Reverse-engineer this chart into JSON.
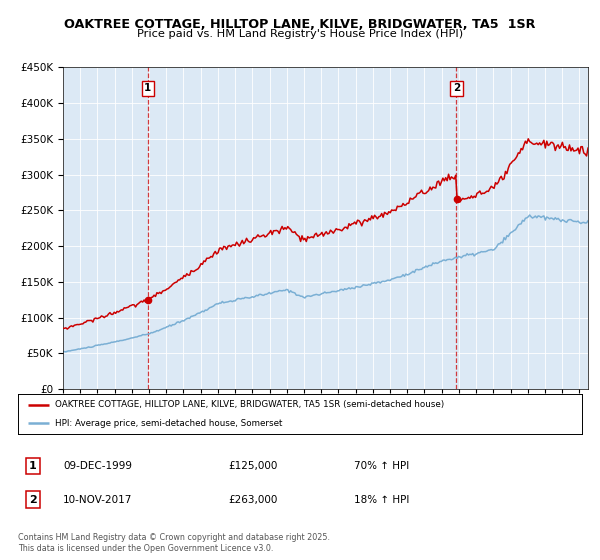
{
  "title": "OAKTREE COTTAGE, HILLTOP LANE, KILVE, BRIDGWATER, TA5  1SR",
  "subtitle": "Price paid vs. HM Land Registry's House Price Index (HPI)",
  "bg_color": "#dce9f5",
  "red_line_color": "#cc0000",
  "blue_line_color": "#7aafd4",
  "purchase1_date": 1999.93,
  "purchase1_price": 125000,
  "purchase2_date": 2017.86,
  "purchase2_price": 263000,
  "legend1": "OAKTREE COTTAGE, HILLTOP LANE, KILVE, BRIDGWATER, TA5 1SR (semi-detached house)",
  "legend2": "HPI: Average price, semi-detached house, Somerset",
  "ann1_label": "1",
  "ann1_date": "09-DEC-1999",
  "ann1_price": "£125,000",
  "ann1_hpi": "70% ↑ HPI",
  "ann2_label": "2",
  "ann2_date": "10-NOV-2017",
  "ann2_price": "£263,000",
  "ann2_hpi": "18% ↑ HPI",
  "footer": "Contains HM Land Registry data © Crown copyright and database right 2025.\nThis data is licensed under the Open Government Licence v3.0.",
  "ylim": [
    0,
    450000
  ],
  "xlim_start": 1995.0,
  "xlim_end": 2025.5
}
